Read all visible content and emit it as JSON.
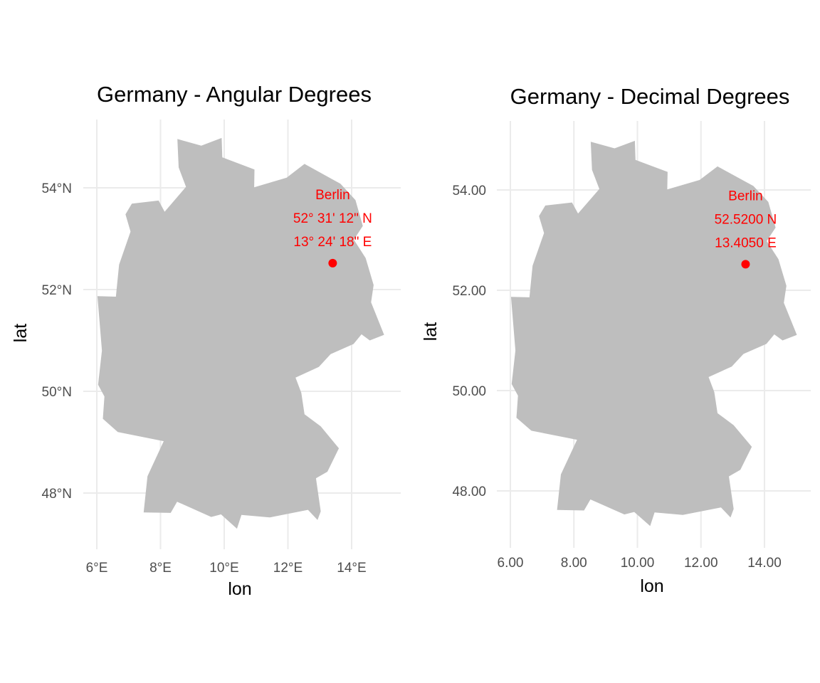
{
  "chart_data": [
    {
      "type": "map",
      "title": "Germany - Angular Degrees",
      "xlabel": "lon",
      "ylabel": "lat",
      "x_ticks": [
        6,
        8,
        10,
        12,
        14
      ],
      "x_tick_labels": [
        "6°E",
        "8°E",
        "10°E",
        "12°E",
        "14°E"
      ],
      "y_ticks": [
        48,
        50,
        52,
        54
      ],
      "y_tick_labels": [
        "48°N",
        "50°N",
        "52°N",
        "54°N"
      ],
      "xlim": [
        5.6,
        15.6
      ],
      "ylim": [
        47.0,
        55.3
      ],
      "grid": true,
      "country_fill": "#bebebe",
      "point": {
        "lon": 13.405,
        "lat": 52.52,
        "color": "#ff0000"
      },
      "annotation": [
        "Berlin",
        "52° 31' 12\" N",
        "13° 24' 18\" E"
      ],
      "annotation_color": "#ff0000"
    },
    {
      "type": "map",
      "title": "Germany - Decimal Degrees",
      "xlabel": "lon",
      "ylabel": "lat",
      "x_ticks": [
        6,
        8,
        10,
        12,
        14
      ],
      "x_tick_labels": [
        "6.00",
        "8.00",
        "10.00",
        "12.00",
        "14.00"
      ],
      "y_ticks": [
        48,
        50,
        52,
        54
      ],
      "y_tick_labels": [
        "48.00",
        "50.00",
        "52.00",
        "54.00"
      ],
      "xlim": [
        5.6,
        15.6
      ],
      "ylim": [
        47.0,
        55.3
      ],
      "grid": true,
      "country_fill": "#bebebe",
      "point": {
        "lon": 13.405,
        "lat": 52.52,
        "color": "#ff0000"
      },
      "annotation": [
        "Berlin",
        "52.5200 N",
        "13.4050 E"
      ],
      "annotation_color": "#ff0000"
    }
  ],
  "germany_outline": [
    [
      6.02,
      51.87
    ],
    [
      6.6,
      51.86
    ],
    [
      6.7,
      52.49
    ],
    [
      7.06,
      53.14
    ],
    [
      6.9,
      53.48
    ],
    [
      7.1,
      53.69
    ],
    [
      7.94,
      53.75
    ],
    [
      8.13,
      53.53
    ],
    [
      8.8,
      54.02
    ],
    [
      8.57,
      54.4
    ],
    [
      8.53,
      54.96
    ],
    [
      9.28,
      54.83
    ],
    [
      9.92,
      54.98
    ],
    [
      9.94,
      54.6
    ],
    [
      10.95,
      54.36
    ],
    [
      10.94,
      54.01
    ],
    [
      11.96,
      54.2
    ],
    [
      12.52,
      54.47
    ],
    [
      13.65,
      54.08
    ],
    [
      14.12,
      53.76
    ],
    [
      14.35,
      53.25
    ],
    [
      14.07,
      52.98
    ],
    [
      14.44,
      52.62
    ],
    [
      14.69,
      52.09
    ],
    [
      14.61,
      51.75
    ],
    [
      15.02,
      51.11
    ],
    [
      14.57,
      51.0
    ],
    [
      14.31,
      51.12
    ],
    [
      14.06,
      50.93
    ],
    [
      13.34,
      50.73
    ],
    [
      12.97,
      50.48
    ],
    [
      12.24,
      50.27
    ],
    [
      12.42,
      49.97
    ],
    [
      12.52,
      49.55
    ],
    [
      13.03,
      49.31
    ],
    [
      13.6,
      48.88
    ],
    [
      13.24,
      48.42
    ],
    [
      12.88,
      48.29
    ],
    [
      13.03,
      47.64
    ],
    [
      12.93,
      47.47
    ],
    [
      12.63,
      47.67
    ],
    [
      11.43,
      47.52
    ],
    [
      10.54,
      47.57
    ],
    [
      10.4,
      47.3
    ],
    [
      9.9,
      47.58
    ],
    [
      9.59,
      47.53
    ],
    [
      8.52,
      47.83
    ],
    [
      8.32,
      47.61
    ],
    [
      7.47,
      47.62
    ],
    [
      7.59,
      48.33
    ],
    [
      8.1,
      49.02
    ],
    [
      6.66,
      49.2
    ],
    [
      6.19,
      49.46
    ],
    [
      6.24,
      49.9
    ],
    [
      6.04,
      50.13
    ],
    [
      6.16,
      50.8
    ],
    [
      6.02,
      51.87
    ]
  ]
}
